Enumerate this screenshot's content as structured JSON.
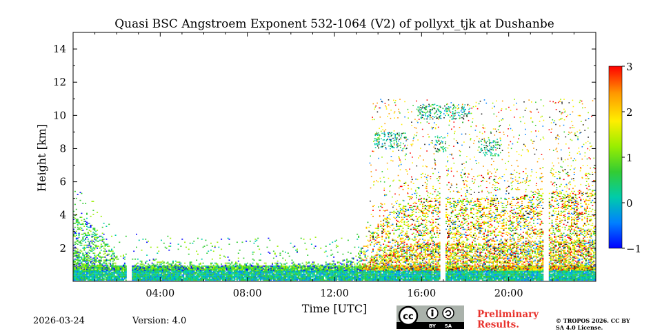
{
  "title": "Quasi BSC Angstroem Exponent 532-1064 (V2) of pollyxt_tjk at Dushanbe",
  "footer": {
    "date": "2026-03-24",
    "version": "Version: 4.0",
    "preliminary": "Preliminary Results.",
    "copyright": "© TROPOS 2026. CC BY SA 4.0 License.",
    "cc_badge": {
      "cc": "cc",
      "by": "BY",
      "sa": "SA"
    }
  },
  "colors": {
    "colormap": [
      "#0000ff",
      "#0080ff",
      "#00ccaa",
      "#33cc33",
      "#99ee00",
      "#ffee00",
      "#ff9900",
      "#ff0000"
    ],
    "accent_red": "#e8322c",
    "background": "#ffffff"
  },
  "chart_data": {
    "type": "heatmap",
    "title": "Quasi BSC Angstroem Exponent 532-1064 (V2) of pollyxt_tjk at Dushanbe",
    "xlabel": "Time [UTC]",
    "ylabel": "Height [km]",
    "xlim_hours": [
      0,
      24
    ],
    "ylim_km": [
      0,
      15
    ],
    "xticks": [
      {
        "value": 4,
        "label": "04:00"
      },
      {
        "value": 8,
        "label": "08:00"
      },
      {
        "value": 12,
        "label": "12:00"
      },
      {
        "value": 16,
        "label": "16:00"
      },
      {
        "value": 20,
        "label": "20:00"
      }
    ],
    "yticks": [
      {
        "value": 2,
        "label": "2"
      },
      {
        "value": 4,
        "label": "4"
      },
      {
        "value": 6,
        "label": "6"
      },
      {
        "value": 8,
        "label": "8"
      },
      {
        "value": 10,
        "label": "10"
      },
      {
        "value": 12,
        "label": "12"
      },
      {
        "value": 14,
        "label": "14"
      }
    ],
    "colorbar": {
      "min": -1,
      "max": 3,
      "ticks": [
        {
          "value": 3,
          "label": "3"
        },
        {
          "value": 2,
          "label": "2"
        },
        {
          "value": 1,
          "label": "1"
        },
        {
          "value": 0,
          "label": "0"
        },
        {
          "value": -1,
          "label": "−1"
        }
      ]
    },
    "data_gaps_hours": [
      2.55,
      16.95,
      21.7
    ],
    "boundary_layer_top_km": [
      [
        0,
        4.2
      ],
      [
        1,
        3.2
      ],
      [
        2,
        1.6
      ],
      [
        3,
        1.3
      ],
      [
        6,
        1.1
      ],
      [
        10,
        1.1
      ],
      [
        12,
        1.2
      ],
      [
        13,
        1.6
      ],
      [
        14,
        3.5
      ],
      [
        15,
        4.5
      ],
      [
        16,
        5.0
      ],
      [
        18,
        5.0
      ],
      [
        20,
        5.0
      ],
      [
        22,
        5.5
      ],
      [
        24,
        5.5
      ]
    ],
    "cloud_layers": [
      {
        "t0": 13.8,
        "t1": 15.3,
        "h0": 8.0,
        "h1": 9.0
      },
      {
        "t0": 16.6,
        "t1": 17.1,
        "h0": 7.8,
        "h1": 8.8
      },
      {
        "t0": 18.6,
        "t1": 19.6,
        "h0": 7.6,
        "h1": 8.6
      },
      {
        "t0": 15.8,
        "t1": 18.2,
        "h0": 9.8,
        "h1": 10.7
      }
    ]
  }
}
